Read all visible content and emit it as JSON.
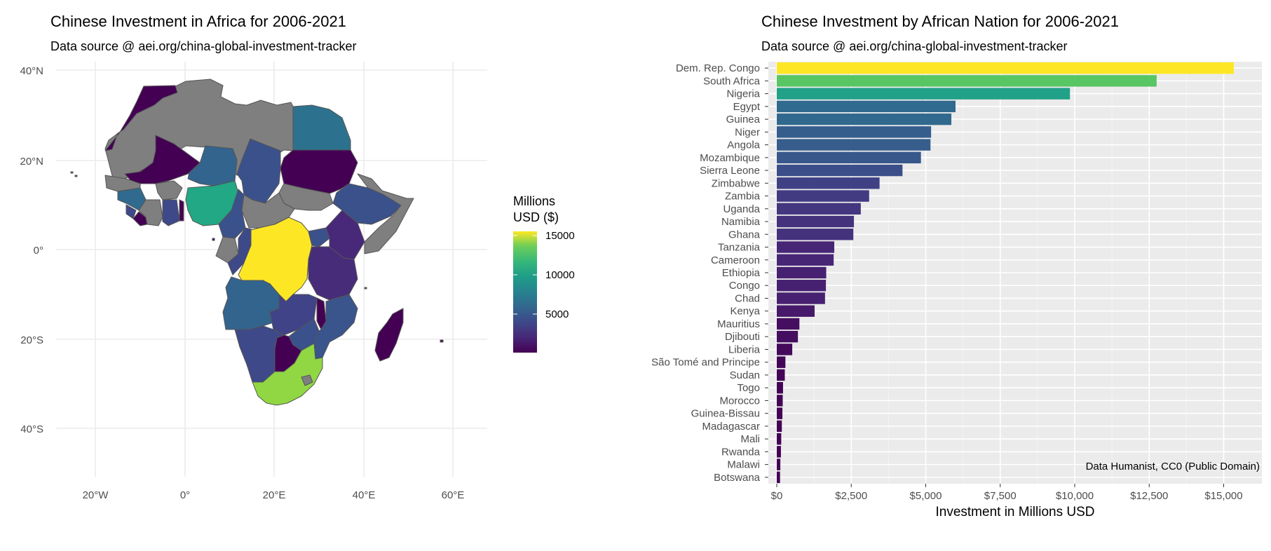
{
  "left_chart": {
    "title": "Chinese Investment in Africa for 2006-2021",
    "subtitle": "Data source @ aei.org/china-global-investment-tracker",
    "legend_title_line1": "Millions",
    "legend_title_line2": "USD ($)",
    "legend_ticks": [
      "15000",
      "10000",
      "5000"
    ],
    "lat_labels": [
      "40°N",
      "20°N",
      "0°",
      "20°S",
      "40°S"
    ],
    "lon_labels": [
      "20°W",
      "0°",
      "20°E",
      "40°E",
      "60°E"
    ],
    "no_data_color": "#7f7f7f"
  },
  "right_chart": {
    "title": "Chinese Investment by African Nation for 2006-2021",
    "subtitle": "Data source @ aei.org/china-global-investment-tracker",
    "xlabel": "Investment in Millions USD",
    "caption": "Data Humanist, CC0 (Public Domain)",
    "x_tick_labels": [
      "$0",
      "$2,500",
      "$5,000",
      "$7,500",
      "$10,000",
      "$12,500",
      "$15,000"
    ]
  },
  "chart_data": [
    {
      "type": "choropleth",
      "title": "Chinese Investment in Africa for 2006-2021",
      "subtitle": "Data source @ aei.org/china-global-investment-tracker",
      "legend_title": "Millions USD ($)",
      "colorscale": "viridis",
      "legend_range": [
        100,
        15340
      ],
      "xlim": [
        -25,
        65
      ],
      "ylim": [
        -50,
        40
      ],
      "grid": true
    },
    {
      "type": "bar",
      "orientation": "horizontal",
      "title": "Chinese Investment by African Nation for 2006-2021",
      "subtitle": "Data source @ aei.org/china-global-investment-tracker",
      "xlabel": "Investment in Millions USD",
      "xlim": [
        0,
        16000
      ],
      "x_ticks": [
        0,
        2500,
        5000,
        7500,
        10000,
        12500,
        15000
      ],
      "color_scale": "viridis",
      "grid": true,
      "categories": [
        "Dem. Rep. Congo",
        "South Africa",
        "Nigeria",
        "Egypt",
        "Guinea",
        "Niger",
        "Angola",
        "Mozambique",
        "Sierra Leone",
        "Zimbabwe",
        "Zambia",
        "Uganda",
        "Namibia",
        "Ghana",
        "Tanzania",
        "Cameroon",
        "Ethiopia",
        "Congo",
        "Chad",
        "Kenya",
        "Mauritius",
        "Djibouti",
        "Liberia",
        "São Tomé and Principe",
        "Sudan",
        "Togo",
        "Morocco",
        "Guinea-Bissau",
        "Madagascar",
        "Mali",
        "Rwanda",
        "Malawi",
        "Botswana"
      ],
      "values": [
        15340,
        12750,
        9840,
        6000,
        5860,
        5180,
        5160,
        4840,
        4220,
        3450,
        3100,
        2820,
        2590,
        2570,
        1930,
        1910,
        1660,
        1650,
        1620,
        1270,
        760,
        710,
        520,
        290,
        270,
        210,
        200,
        190,
        170,
        150,
        140,
        120,
        110
      ]
    }
  ]
}
